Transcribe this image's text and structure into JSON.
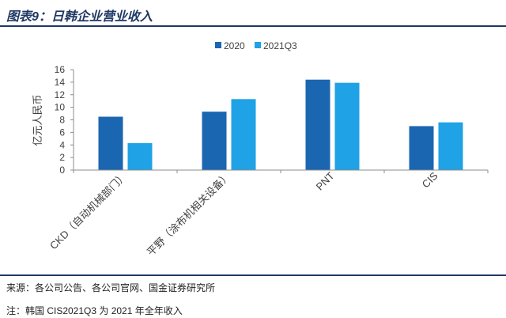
{
  "chart_data": {
    "type": "bar",
    "title": "图表9：日韩企业营业收入",
    "ylabel": "亿元人民币",
    "categories": [
      "CKD（自动机械部门）",
      "平野（涂布机相关设备）",
      "PNT",
      "CIS"
    ],
    "series": [
      {
        "name": "2020",
        "values": [
          8.5,
          9.3,
          14.4,
          7.0
        ],
        "color": "#1b66b1"
      },
      {
        "name": "2021Q3",
        "values": [
          4.3,
          11.3,
          13.9,
          7.6
        ],
        "color": "#1fa2e6"
      }
    ],
    "ylim": [
      0,
      16
    ],
    "yticks": [
      0,
      2,
      4,
      6,
      8,
      10,
      12,
      14,
      16
    ],
    "grid": false,
    "legend": "top-center"
  },
  "footer": {
    "source": "来源：各公司公告、各公司官网、国金证券研究所",
    "note": "注：韩国 CIS2021Q3 为 2021 年全年收入"
  },
  "colors": {
    "accent": "#1f3864",
    "axis": "#8c8c8c"
  }
}
